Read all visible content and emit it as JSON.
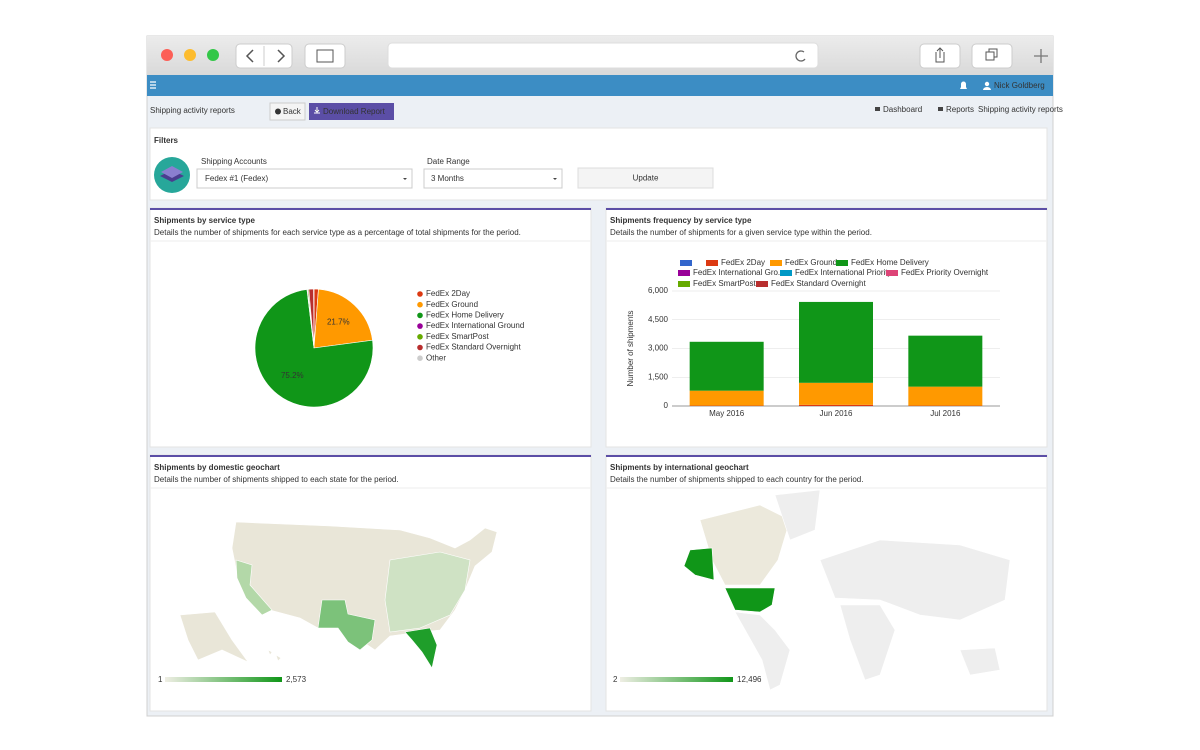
{
  "navbar": {
    "user": "Nick Goldberg"
  },
  "header": {
    "title": "Shipping activity reports",
    "back": "Back",
    "download": "Download Report",
    "breadcrumb": [
      "Dashboard",
      "Reports",
      "Shipping activity reports"
    ]
  },
  "filters": {
    "title": "Filters",
    "account_label": "Shipping Accounts",
    "account_value": "Fedex #1 (Fedex)",
    "range_label": "Date Range",
    "range_value": "3 Months",
    "update": "Update"
  },
  "chart_data": [
    {
      "type": "pie",
      "title": "Shipments by service type",
      "subtitle": "Details the number of shipments for each service type as a percentage of total shipments for the period.",
      "categories": [
        "FedEx 2Day",
        "FedEx Ground",
        "FedEx Home Delivery",
        "FedEx International Ground",
        "FedEx SmartPost",
        "FedEx Standard Overnight",
        "Other"
      ],
      "values": [
        1.2,
        21.7,
        75.2,
        0.2,
        0.3,
        1.3,
        0.1
      ],
      "value_labels": [
        null,
        "21.7%",
        "75.2%",
        null,
        null,
        null,
        null
      ],
      "colors": [
        "#dc3912",
        "#ff9900",
        "#109618",
        "#990099",
        "#66aa00",
        "#b82e2e",
        "#cccccc"
      ]
    },
    {
      "type": "bar",
      "stacked": true,
      "title": "Shipments frequency by service type",
      "subtitle": "Details the number of shipments for a given service type within the period.",
      "y_label": "Number of shipments",
      "categories": [
        "May 2016",
        "Jun 2016",
        "Jul 2016"
      ],
      "ylim": [
        0,
        6000
      ],
      "yticks": [
        0,
        {
          "value": 1500,
          "label": "1,500"
        },
        {
          "value": 3000,
          "label": "3,000"
        },
        {
          "value": 4500,
          "label": "4,500"
        },
        {
          "value": 6000,
          "label": "6,000"
        }
      ],
      "grid": true,
      "series": [
        {
          "name": "FedEx 2Day",
          "color": "#dc3912",
          "values": [
            20,
            60,
            20
          ]
        },
        {
          "name": "FedEx Ground",
          "color": "#ff9900",
          "values": [
            780,
            1150,
            990
          ]
        },
        {
          "name": "FedEx Home Delivery",
          "color": "#109618",
          "values": [
            2550,
            4220,
            2660
          ]
        },
        {
          "name": "FedEx International Gro...",
          "color": "#990099",
          "values": [
            0,
            0,
            0
          ]
        },
        {
          "name": "FedEx International Priority",
          "color": "#0099c6",
          "values": [
            0,
            0,
            0
          ]
        },
        {
          "name": "FedEx Priority Overnight",
          "color": "#dd4477",
          "values": [
            0,
            0,
            0
          ]
        },
        {
          "name": "FedEx SmartPost",
          "color": "#66aa00",
          "values": [
            0,
            0,
            0
          ]
        },
        {
          "name": "FedEx Standard Overnight",
          "color": "#b82e2e",
          "values": [
            0,
            0,
            0
          ]
        }
      ]
    }
  ],
  "geocharts": [
    {
      "title": "Shipments by domestic geochart",
      "subtitle": "Details the number of shipments shipped to each state for the period.",
      "legend_min": "1",
      "legend_max": "2,573"
    },
    {
      "title": "Shipments by international geochart",
      "subtitle": "Details the number of shipments shipped to each country for the period.",
      "legend_min": "2",
      "legend_max": "12,496"
    }
  ]
}
